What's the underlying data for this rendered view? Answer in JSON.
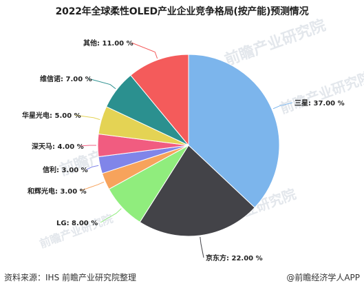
{
  "title": "2022年全球柔性OLED产业企业竞争格局(按产能)预测情况",
  "source": "资料来源：IHS 前瞻产业研究院整理",
  "credit": "@前瞻经济学人APP",
  "watermark": "前瞻产业研究院",
  "chart_data": {
    "type": "pie",
    "title": "2022年全球柔性OLED产业企业竞争格局(按产能)预测情况",
    "unit": "%",
    "slices": [
      {
        "name": "三星",
        "value": 37.0,
        "label": "三星: 37.00 %",
        "color": "#7cb5ec"
      },
      {
        "name": "京东方",
        "value": 22.0,
        "label": "京东方: 22.00 %",
        "color": "#434348"
      },
      {
        "name": "LG",
        "value": 8.0,
        "label": "LG: 8.00 %",
        "color": "#90ed7d"
      },
      {
        "name": "和辉光电",
        "value": 3.0,
        "label": "和辉光电: 3.00 %",
        "color": "#f7a35c"
      },
      {
        "name": "信利",
        "value": 3.0,
        "label": "信利: 3.00 %",
        "color": "#8085e9"
      },
      {
        "name": "深天马",
        "value": 4.0,
        "label": "深天马: 4.00 %",
        "color": "#f15c80"
      },
      {
        "name": "华星光电",
        "value": 5.0,
        "label": "华星光电: 5.00 %",
        "color": "#e4d354"
      },
      {
        "name": "维信诺",
        "value": 7.0,
        "label": "维信诺: 7.00 %",
        "color": "#2b908f"
      },
      {
        "name": "其他",
        "value": 11.0,
        "label": "其他: 11.00 %",
        "color": "#f45b5b"
      }
    ]
  }
}
